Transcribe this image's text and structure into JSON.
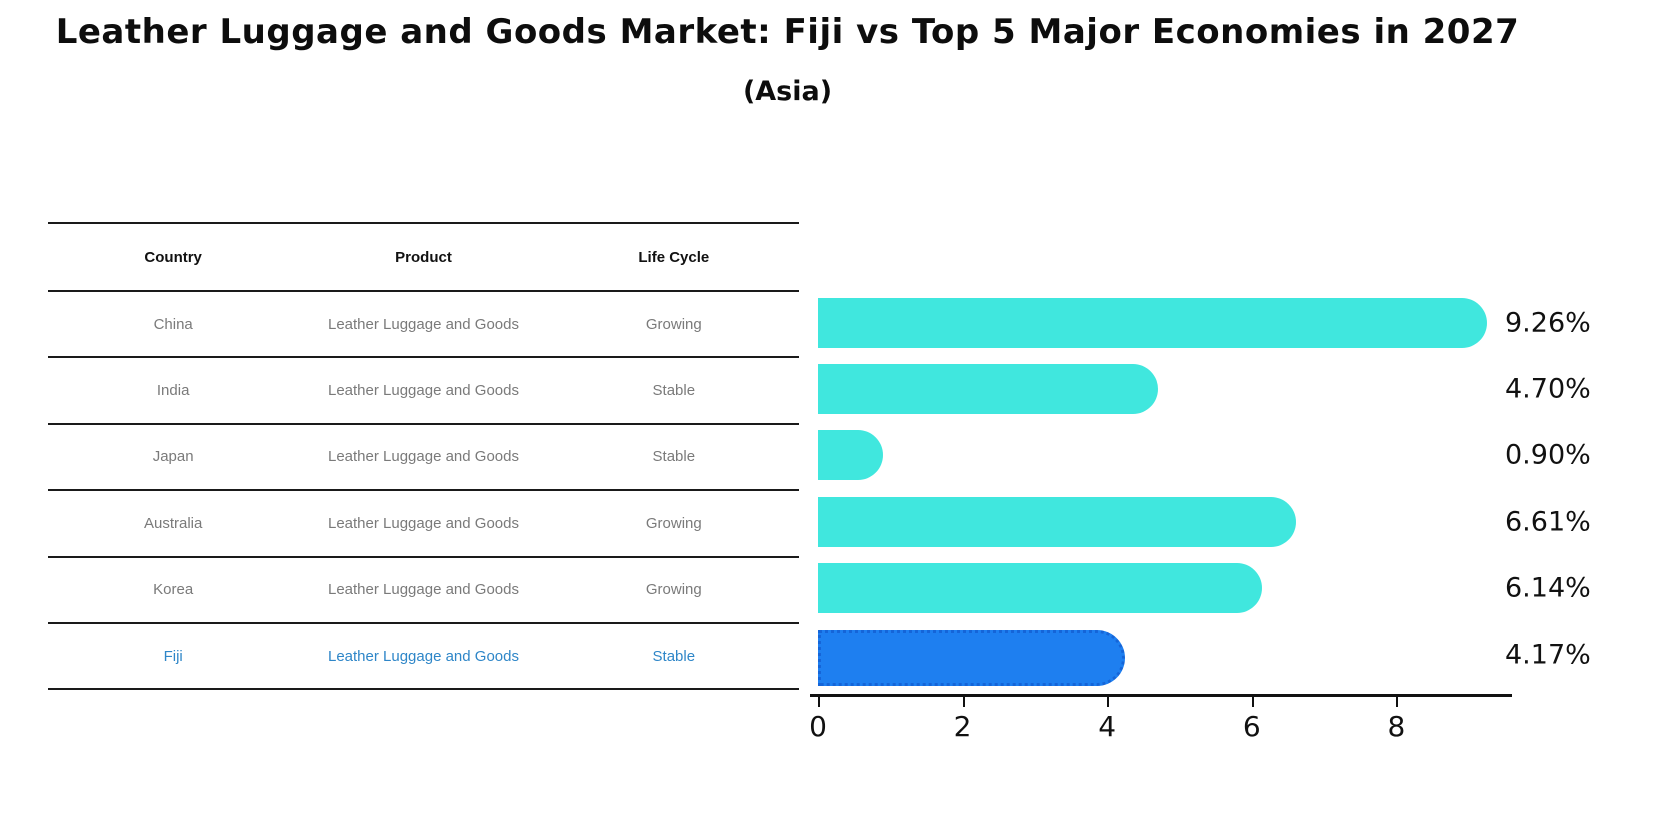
{
  "title": "Leather Luggage and Goods Market: Fiji vs Top 5 Major Economies in 2027",
  "subtitle": "(Asia)",
  "table": {
    "headers": [
      "Country",
      "Product",
      "Life Cycle"
    ],
    "rows": [
      {
        "country": "China",
        "product": "Leather Luggage and Goods",
        "life_cycle": "Growing",
        "highlight": false
      },
      {
        "country": "India",
        "product": "Leather Luggage and Goods",
        "life_cycle": "Stable",
        "highlight": false
      },
      {
        "country": "Japan",
        "product": "Leather Luggage and Goods",
        "life_cycle": "Stable",
        "highlight": false
      },
      {
        "country": "Australia",
        "product": "Leather Luggage and Goods",
        "life_cycle": "Growing",
        "highlight": false
      },
      {
        "country": "Korea",
        "product": "Leather Luggage and Goods",
        "life_cycle": "Growing",
        "highlight": false
      },
      {
        "country": "Fiji",
        "product": "Leather Luggage and Goods",
        "life_cycle": "Stable",
        "highlight": true
      }
    ]
  },
  "chart_data": {
    "type": "bar",
    "orientation": "horizontal",
    "title": "Leather Luggage and Goods Market: Fiji vs Top 5 Major Economies in 2027 (Asia)",
    "categories": [
      "China",
      "India",
      "Japan",
      "Australia",
      "Korea",
      "Fiji"
    ],
    "values": [
      9.26,
      4.7,
      0.9,
      6.61,
      6.14,
      4.17
    ],
    "value_labels": [
      "9.26%",
      "4.70%",
      "0.90%",
      "6.61%",
      "6.14%",
      "4.17%"
    ],
    "x_ticks": [
      0,
      2,
      4,
      6,
      8
    ],
    "xlim": [
      0,
      9.8
    ],
    "grid": false,
    "legend": "none",
    "highlight_index": 5
  },
  "colors": {
    "bar": "#40e7de",
    "highlight_bar": "#1e7ff0",
    "highlight_border": "#1565d8",
    "highlight_text": "#2e86c8",
    "table_text": "#7a7a7a",
    "axis": "#111111"
  }
}
